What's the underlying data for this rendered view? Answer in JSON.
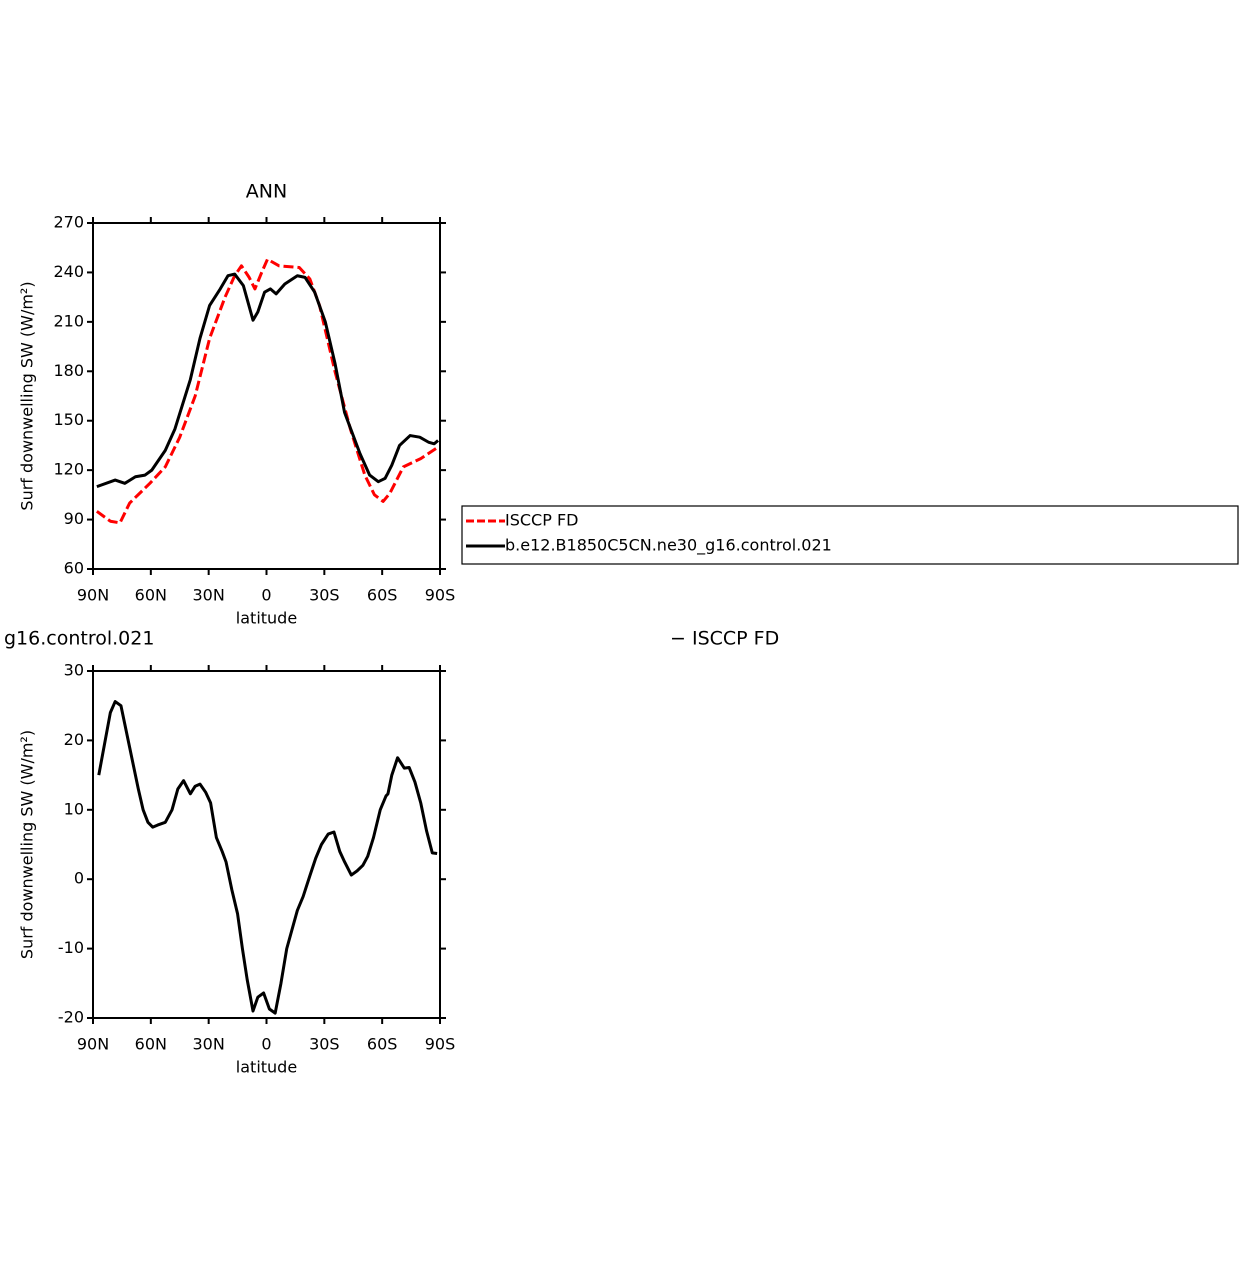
{
  "chart_data": [
    {
      "type": "line",
      "title": "ANN",
      "xlabel": "latitude",
      "ylabel": "Surf downwelling SW (W/m²)",
      "xlim": [
        90,
        -90
      ],
      "ylim": [
        60,
        270
      ],
      "xticks": [
        {
          "value": 90,
          "label": "90N"
        },
        {
          "value": 60,
          "label": "60N"
        },
        {
          "value": 30,
          "label": "30N"
        },
        0,
        {
          "value": -30,
          "label": "30S"
        },
        {
          "value": -60,
          "label": "60S"
        },
        {
          "value": -90,
          "label": "90S"
        }
      ],
      "yticks": [
        60,
        90,
        120,
        150,
        180,
        210,
        240,
        270
      ],
      "legend": "right",
      "series": [
        {
          "name": "ISCCP FD",
          "color": "#ff0000",
          "dash": true,
          "x": [
            88,
            81,
            76,
            71,
            60.5,
            52.5,
            45,
            37,
            29.5,
            21.5,
            16.5,
            13,
            9,
            6,
            2.5,
            -0.5,
            -6.5,
            -17,
            -22.5,
            -27.5,
            -35.5,
            -43.5,
            -51,
            -56,
            -60.5,
            -64,
            -71,
            -80,
            -89
          ],
          "values": [
            95,
            89,
            88,
            100,
            112,
            122,
            140,
            165,
            200,
            225,
            238,
            244,
            237,
            230,
            240,
            248,
            244,
            243,
            236,
            220,
            180,
            145,
            117,
            105,
            101,
            106,
            122,
            127,
            134
          ]
        },
        {
          "name": "b.e12.B1850C5CN.ne30_g16.control.021",
          "color": "#000000",
          "dash": false,
          "x": [
            88,
            78.5,
            73.5,
            68,
            63,
            59.5,
            52.5,
            47.5,
            39.5,
            34.5,
            29.5,
            24,
            20,
            16.5,
            12,
            7,
            4.5,
            1,
            -2,
            -5,
            -9.5,
            -16,
            -20,
            -25,
            -30.5,
            -35.5,
            -40.5,
            -48.5,
            -53.5,
            -58,
            -61.5,
            -65,
            -69,
            -74.5,
            -79.5,
            -84,
            -87,
            -89
          ],
          "values": [
            110,
            114,
            112,
            116,
            117,
            120,
            132,
            145,
            175,
            200,
            220,
            230,
            238,
            239,
            232,
            211,
            216,
            228,
            230,
            227,
            233,
            238,
            237,
            228,
            210,
            185,
            155,
            130,
            117,
            113,
            115,
            123,
            135,
            141,
            140,
            137,
            136,
            138
          ]
        }
      ]
    },
    {
      "type": "line",
      "title_left": "g16.control.021",
      "title_right": "− ISCCP FD",
      "xlabel": "latitude",
      "ylabel": "Surf downwelling SW (W/m²)",
      "xlim": [
        90,
        -90
      ],
      "ylim": [
        -20,
        30
      ],
      "xticks": [
        {
          "value": 90,
          "label": "90N"
        },
        {
          "value": 60,
          "label": "60N"
        },
        {
          "value": 30,
          "label": "30N"
        },
        0,
        {
          "value": -30,
          "label": "30S"
        },
        {
          "value": -60,
          "label": "60S"
        },
        {
          "value": -90,
          "label": "90S"
        }
      ],
      "yticks": [
        -20,
        -10,
        0,
        10,
        20,
        30
      ],
      "series": [
        {
          "color": "#000000",
          "dash": false,
          "x": [
            87,
            81,
            78.5,
            75.5,
            71,
            66.5,
            64,
            61.5,
            59,
            56.5,
            52.5,
            49,
            46,
            43,
            39.5,
            37,
            34.5,
            31.5,
            29,
            26,
            23,
            21,
            18,
            15,
            12.5,
            10,
            7,
            4.5,
            1.5,
            -1.5,
            -4.5,
            -7.5,
            -10.5,
            -13,
            -16,
            -19,
            -22.5,
            -25.5,
            -28.5,
            -32,
            -35,
            -38,
            -40.5,
            -44,
            -47,
            -50,
            -52.5,
            -55.5,
            -59,
            -62,
            -63,
            -65,
            -68,
            -71.5,
            -74,
            -77,
            -80,
            -83,
            -86,
            -88.5
          ],
          "values": [
            15,
            24,
            25.6,
            25,
            19,
            13,
            10,
            8.2,
            7.5,
            7.8,
            8.2,
            10,
            13,
            14.2,
            12.3,
            13.4,
            13.7,
            12.5,
            11,
            6,
            4,
            2.5,
            -1.5,
            -5,
            -10,
            -14.5,
            -19,
            -17,
            -16.4,
            -18.7,
            -19.3,
            -15,
            -10,
            -7.5,
            -4.5,
            -2.5,
            0.5,
            3,
            5,
            6.5,
            6.8,
            4,
            2.5,
            0.6,
            1.2,
            2,
            3.3,
            6,
            10,
            12,
            12.3,
            15,
            17.5,
            16,
            16.1,
            14,
            11,
            7,
            3.8,
            3.7
          ]
        }
      ]
    }
  ]
}
